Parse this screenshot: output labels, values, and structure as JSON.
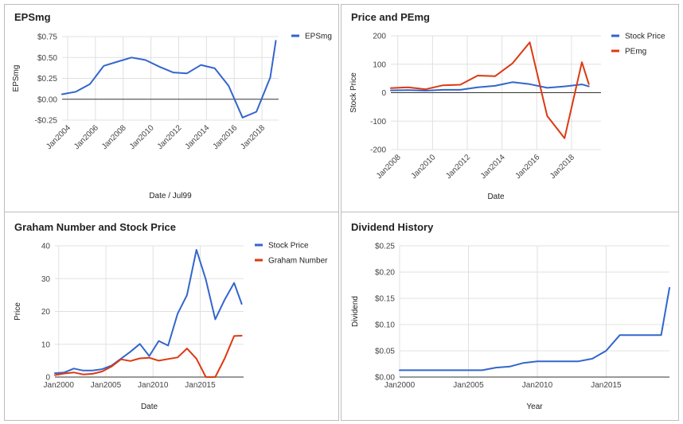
{
  "colors": {
    "blue": "#3366cc",
    "red": "#dc3912",
    "grid": "#e0e0e0",
    "zero": "#333333"
  },
  "chart_data": [
    {
      "id": "eps",
      "type": "line",
      "title": "EPSmg",
      "xlabel": "Date / Jul99",
      "ylabel": "EPSmg",
      "xlim": [
        2003.6,
        2019.2
      ],
      "ylim": [
        -0.25,
        0.75
      ],
      "x_ticks": [
        2004,
        2006,
        2008,
        2010,
        2012,
        2014,
        2016,
        2018
      ],
      "x_tick_labels": [
        "Jan2004",
        "Jan2006",
        "Jan2008",
        "Jan2010",
        "Jan2012",
        "Jan2014",
        "Jan2016",
        "Jan2018"
      ],
      "x_tick_rotate": true,
      "y_ticks": [
        -0.25,
        0,
        0.25,
        0.5,
        0.75
      ],
      "y_tick_labels": [
        "-$0.25",
        "$0.00",
        "$0.25",
        "$0.50",
        "$0.75"
      ],
      "grid": true,
      "legend": "right",
      "series": [
        {
          "name": "EPSmg",
          "color": "#3366cc",
          "x": [
            2003.6,
            2004.6,
            2005.6,
            2006.6,
            2007.6,
            2008.6,
            2009.6,
            2010.6,
            2011.6,
            2012.6,
            2013.6,
            2014.6,
            2015.6,
            2016.6,
            2017.6,
            2018.6,
            2019.0
          ],
          "values": [
            0.06,
            0.09,
            0.18,
            0.4,
            0.45,
            0.5,
            0.47,
            0.39,
            0.32,
            0.31,
            0.41,
            0.37,
            0.16,
            -0.22,
            -0.15,
            0.26,
            0.7
          ]
        }
      ]
    },
    {
      "id": "price_pe",
      "type": "line",
      "title": "Price and PEmg",
      "xlabel": "Date",
      "ylabel": "Stock Price",
      "xlim": [
        2007.6,
        2019.7
      ],
      "ylim": [
        -200,
        200
      ],
      "x_ticks": [
        2008,
        2010,
        2012,
        2014,
        2016,
        2018
      ],
      "x_tick_labels": [
        "Jan2008",
        "Jan2010",
        "Jan2012",
        "Jan2014",
        "Jan2016",
        "Jan2018"
      ],
      "x_tick_rotate": true,
      "y_ticks": [
        -200,
        -100,
        0,
        100,
        200
      ],
      "y_tick_labels": [
        "-200",
        "-100",
        "0",
        "100",
        "200"
      ],
      "grid": true,
      "legend": "right",
      "series": [
        {
          "name": "Stock Price",
          "color": "#3366cc",
          "x": [
            2007.6,
            2008.6,
            2009.6,
            2010.6,
            2011.6,
            2012.6,
            2013.6,
            2014.6,
            2015.6,
            2016.6,
            2017.6,
            2018.6,
            2019.0
          ],
          "values": [
            8,
            9,
            7,
            10,
            10,
            19,
            24,
            37,
            30,
            17,
            22,
            29,
            22
          ]
        },
        {
          "name": "PEmg",
          "color": "#dc3912",
          "x": [
            2007.6,
            2008.6,
            2009.6,
            2010.6,
            2011.6,
            2012.6,
            2013.6,
            2014.6,
            2015.6,
            2016.6,
            2017.6,
            2018.6,
            2019.0
          ],
          "values": [
            16,
            19,
            12,
            26,
            28,
            60,
            58,
            103,
            177,
            -82,
            -160,
            107,
            30
          ]
        }
      ]
    },
    {
      "id": "graham",
      "type": "line",
      "title": "Graham Number and Stock Price",
      "xlabel": "Date",
      "ylabel": "Price",
      "xlim": [
        1999.6,
        2019.6
      ],
      "ylim": [
        0,
        40
      ],
      "x_ticks": [
        2000,
        2005,
        2010,
        2015
      ],
      "x_tick_labels": [
        "Jan2000",
        "Jan2005",
        "Jan2010",
        "Jan2015"
      ],
      "x_tick_rotate": false,
      "y_ticks": [
        0,
        10,
        20,
        30,
        40
      ],
      "y_tick_labels": [
        "0",
        "10",
        "20",
        "30",
        "40"
      ],
      "grid": true,
      "legend": "right",
      "series": [
        {
          "name": "Stock Price",
          "color": "#3366cc",
          "x": [
            1999.6,
            2000.6,
            2001.6,
            2002.6,
            2003.6,
            2004.6,
            2005.6,
            2006.6,
            2007.6,
            2008.6,
            2009.6,
            2010.6,
            2011.6,
            2012.6,
            2013.6,
            2014.6,
            2015.6,
            2016.6,
            2017.6,
            2018.6,
            2019.4
          ],
          "values": [
            1.2,
            1.4,
            2.6,
            2.0,
            2.0,
            2.4,
            3.5,
            5.6,
            7.7,
            10.1,
            6.4,
            11.0,
            9.6,
            19.3,
            25.0,
            38.8,
            29.7,
            17.6,
            23.6,
            28.7,
            22.3
          ]
        },
        {
          "name": "Graham Number",
          "color": "#dc3912",
          "x": [
            1999.6,
            2000.6,
            2001.6,
            2002.6,
            2003.6,
            2004.6,
            2005.6,
            2006.6,
            2007.6,
            2008.6,
            2009.6,
            2010.6,
            2011.6,
            2012.6,
            2013.6,
            2014.6,
            2015.6,
            2016.6,
            2017.6,
            2018.6,
            2019.4
          ],
          "values": [
            0.6,
            1.1,
            1.4,
            0.8,
            1.0,
            1.7,
            3.2,
            5.4,
            4.9,
            5.7,
            5.9,
            5.0,
            5.5,
            6.0,
            8.7,
            5.6,
            0.0,
            0.0,
            5.7,
            12.5,
            12.6
          ]
        }
      ]
    },
    {
      "id": "dividend",
      "type": "line",
      "title": "Dividend History",
      "xlabel": "Year",
      "ylabel": "Dividend",
      "xlim": [
        2000,
        2019.6
      ],
      "ylim": [
        0,
        0.25
      ],
      "x_ticks": [
        2000,
        2005,
        2010,
        2015
      ],
      "x_tick_labels": [
        "Jan2000",
        "Jan2005",
        "Jan2010",
        "Jan2015"
      ],
      "x_tick_rotate": false,
      "y_ticks": [
        0,
        0.05,
        0.1,
        0.15,
        0.2,
        0.25
      ],
      "y_tick_labels": [
        "$0.00",
        "$0.05",
        "$0.10",
        "$0.15",
        "$0.20",
        "$0.25"
      ],
      "grid": true,
      "legend": "none",
      "series": [
        {
          "name": "",
          "color": "#3366cc",
          "x": [
            2000,
            2001,
            2002,
            2003,
            2004,
            2005,
            2006,
            2007,
            2008,
            2009,
            2010,
            2011,
            2012,
            2013,
            2014,
            2015,
            2016,
            2017,
            2018,
            2019,
            2019.6
          ],
          "values": [
            0.013,
            0.013,
            0.013,
            0.013,
            0.013,
            0.013,
            0.013,
            0.018,
            0.02,
            0.027,
            0.03,
            0.03,
            0.03,
            0.03,
            0.035,
            0.05,
            0.08,
            0.08,
            0.08,
            0.08,
            0.17
          ]
        }
      ]
    }
  ]
}
